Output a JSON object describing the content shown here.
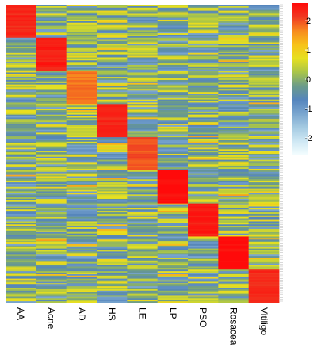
{
  "chart_data": {
    "type": "heatmap",
    "title": "",
    "columns": [
      "AA",
      "Acne",
      "AD",
      "HS",
      "LE",
      "LP",
      "PSO",
      "Rosacea",
      "Vitiligo"
    ],
    "row_blocks": [
      {
        "cluster": "AA",
        "high_value": 2.3
      },
      {
        "cluster": "Acne",
        "high_value": 2.4
      },
      {
        "cluster": "AD",
        "high_value": 1.8
      },
      {
        "cluster": "HS",
        "high_value": 2.3
      },
      {
        "cluster": "LE",
        "high_value": 2.0
      },
      {
        "cluster": "LP",
        "high_value": 2.6
      },
      {
        "cluster": "PSO",
        "high_value": 2.4
      },
      {
        "cluster": "Rosacea",
        "high_value": 2.6
      },
      {
        "cluster": "Vitiligo",
        "high_value": 2.3
      }
    ],
    "background_range": [
      -1.2,
      0.9
    ],
    "colorbar": {
      "ticks": [
        2,
        1,
        0,
        -1,
        -2
      ],
      "vmin": -2.6,
      "vmax": 2.6,
      "colors": [
        "#f5feff",
        "#cfe8f4",
        "#a6cbe2",
        "#7aa6cf",
        "#5585bd",
        "#6b9b8a",
        "#a8c44a",
        "#e6e020",
        "#f7c21a",
        "#f78a1f",
        "#f03a22",
        "#ff0a0a"
      ]
    },
    "xlabel": "",
    "ylabel": ""
  }
}
